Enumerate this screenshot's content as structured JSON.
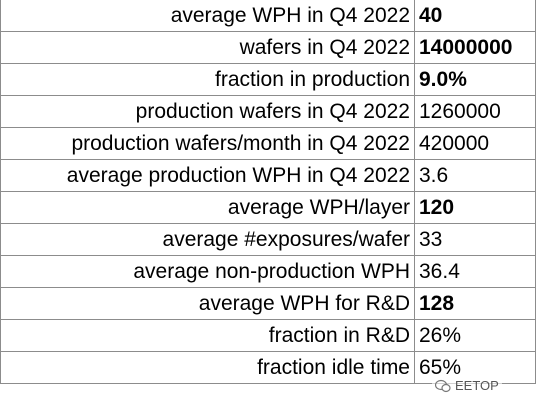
{
  "table": {
    "rows": [
      {
        "label": "average WPH in Q4 2022",
        "value": "40",
        "bold": true
      },
      {
        "label": "wafers in Q4 2022",
        "value": "14000000",
        "bold": true
      },
      {
        "label": "fraction in production",
        "value": "9.0%",
        "bold": true
      },
      {
        "label": "production wafers in Q4 2022",
        "value": "1260000",
        "bold": false
      },
      {
        "label": "production wafers/month in Q4 2022",
        "value": "420000",
        "bold": false
      },
      {
        "label": "average production WPH in Q4 2022",
        "value": "3.6",
        "bold": false
      },
      {
        "label": "average WPH/layer",
        "value": "120",
        "bold": true
      },
      {
        "label": "average #exposures/wafer",
        "value": "33",
        "bold": false
      },
      {
        "label": "average non-production WPH",
        "value": "36.4",
        "bold": false
      },
      {
        "label": "average WPH for R&D",
        "value": "128",
        "bold": true
      },
      {
        "label": "fraction in R&D",
        "value": "26%",
        "bold": false
      },
      {
        "label": "fraction idle time",
        "value": "65%",
        "bold": false
      }
    ]
  },
  "watermark": "EETOP"
}
